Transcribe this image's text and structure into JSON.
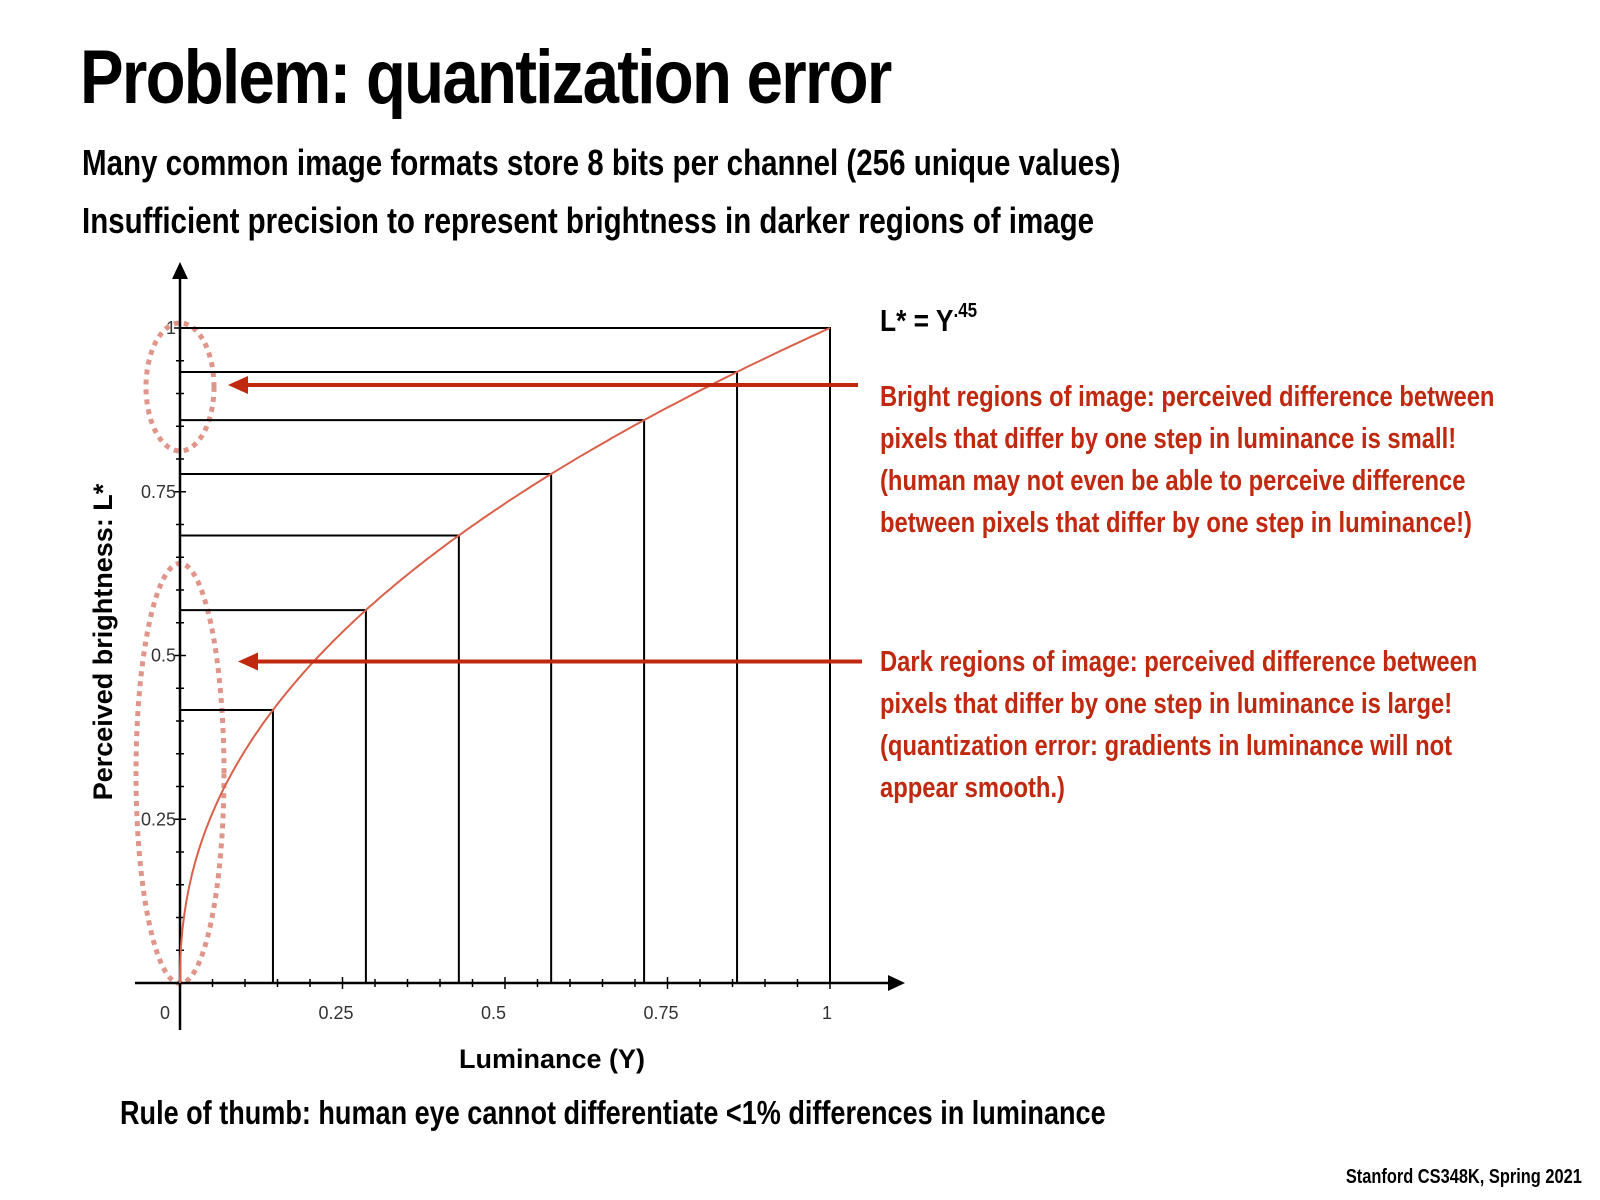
{
  "slide": {
    "title": "Problem: quantization error",
    "subtitle_lines": [
      "Many common image formats store 8 bits per channel (256 unique values)",
      "Insufficient precision to represent brightness in darker regions of image"
    ],
    "rule_of_thumb": "Rule of thumb: human eye cannot differentiate <1% differences in luminance",
    "footer": "Stanford CS348K, Spring 2021"
  },
  "annotations": {
    "formula_base": "L* = Y",
    "formula_exponent": ".45",
    "bright": {
      "lines": [
        "Bright regions of image: perceived difference between",
        "pixels that differ by one step in luminance is small!",
        "(human may not even be able to perceive difference",
        "between pixels that differ by one step in luminance!)"
      ],
      "arrow_target_y": 0.91
    },
    "dark": {
      "lines": [
        "Dark regions of image: perceived difference between",
        "pixels that differ by one step in luminance is large!",
        "(quantization error: gradients in luminance will not",
        "appear smooth.)"
      ],
      "arrow_target_y": 0.5
    },
    "accent_color": "#c0290f",
    "curve_color": "#d9604a",
    "ellipse_color": "#e0958a"
  },
  "chart_data": {
    "type": "line",
    "xlabel": "Luminance (Y)",
    "ylabel": "Perceived brightness: L*",
    "xlim": [
      0,
      1.08
    ],
    "ylim": [
      0,
      1.08
    ],
    "x_ticks": [
      {
        "value": 0,
        "label": "0"
      },
      {
        "value": 0.25,
        "label": "0.25"
      },
      {
        "value": 0.5,
        "label": "0.5"
      },
      {
        "value": 0.75,
        "label": "0.75"
      },
      {
        "value": 1,
        "label": "1"
      }
    ],
    "y_ticks": [
      {
        "value": 0.25,
        "label": "0.25"
      },
      {
        "value": 0.5,
        "label": "0.5"
      },
      {
        "value": 0.75,
        "label": "0.75"
      },
      {
        "value": 1,
        "label": "1"
      }
    ],
    "series": [
      {
        "function": "L* = Y^0.45",
        "exponent": 0.45
      }
    ],
    "step_lines_x": [
      0.143,
      0.286,
      0.429,
      0.571,
      0.714,
      0.857,
      1.0
    ],
    "grid": false
  }
}
